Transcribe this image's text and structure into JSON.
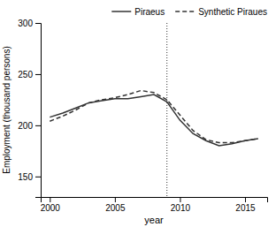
{
  "chart_data": {
    "type": "line",
    "x": [
      2000,
      2001,
      2002,
      2003,
      2004,
      2005,
      2006,
      2007,
      2008,
      2009,
      2010,
      2011,
      2012,
      2013,
      2014,
      2015,
      2016
    ],
    "series": [
      {
        "name": "Piraeus",
        "color": "#333333",
        "line_style": "solid",
        "values": [
          208,
          212,
          217,
          222,
          224,
          226,
          226,
          228,
          230,
          223,
          205,
          192,
          185,
          180,
          182,
          185,
          187
        ]
      },
      {
        "name": "Synthetic Piraues",
        "color": "#333333",
        "line_style": "dashed",
        "values": [
          204,
          209,
          215,
          222,
          225,
          227,
          230,
          234,
          232,
          225,
          210,
          195,
          186,
          183,
          183,
          185,
          187
        ]
      }
    ],
    "vline": 2009,
    "xlabel": "year",
    "ylabel": "Employment (thousand persons)",
    "xlim": [
      1999.3,
      2016.7
    ],
    "xticks": [
      2000,
      2005,
      2010,
      2015
    ],
    "ylim": [
      130,
      300
    ],
    "yticks": [
      150,
      200,
      250,
      300
    ],
    "grid": false,
    "legend": "upper right"
  }
}
